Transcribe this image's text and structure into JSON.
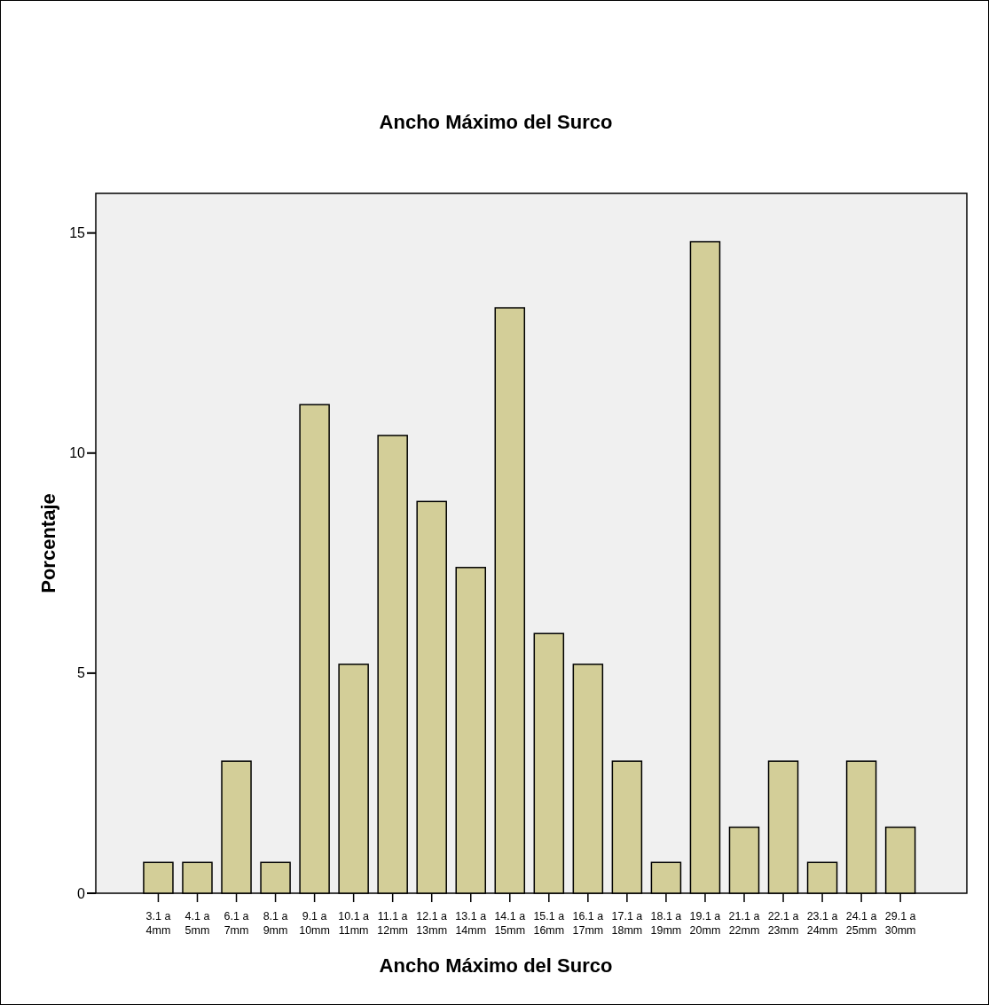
{
  "chart_data": {
    "type": "bar",
    "title": "Ancho Máximo del Surco",
    "xlabel": "Ancho Máximo del Surco",
    "ylabel": "Porcentaje",
    "categories": [
      "3.1 a 4mm",
      "4.1 a 5mm",
      "6.1 a 7mm",
      "8.1 a 9mm",
      "9.1 a 10mm",
      "10.1 a 11mm",
      "11.1 a 12mm",
      "12.1 a 13mm",
      "13.1 a 14mm",
      "14.1 a 15mm",
      "15.1 a 16mm",
      "16.1 a 17mm",
      "17.1 a 18mm",
      "18.1 a 19mm",
      "19.1 a 20mm",
      "21.1 a 22mm",
      "22.1 a 23mm",
      "23.1 a 24mm",
      "24.1 a 25mm",
      "29.1 a 30mm"
    ],
    "values": [
      0.7,
      0.7,
      3.0,
      0.7,
      11.1,
      5.2,
      10.4,
      8.9,
      7.4,
      13.3,
      5.9,
      5.2,
      3.0,
      0.7,
      14.8,
      1.5,
      3.0,
      0.7,
      3.0,
      1.5
    ],
    "color": "#d3ce98",
    "ylim": [
      0,
      15.9
    ],
    "yticks": [
      0,
      5,
      10,
      15
    ],
    "grid": false
  }
}
